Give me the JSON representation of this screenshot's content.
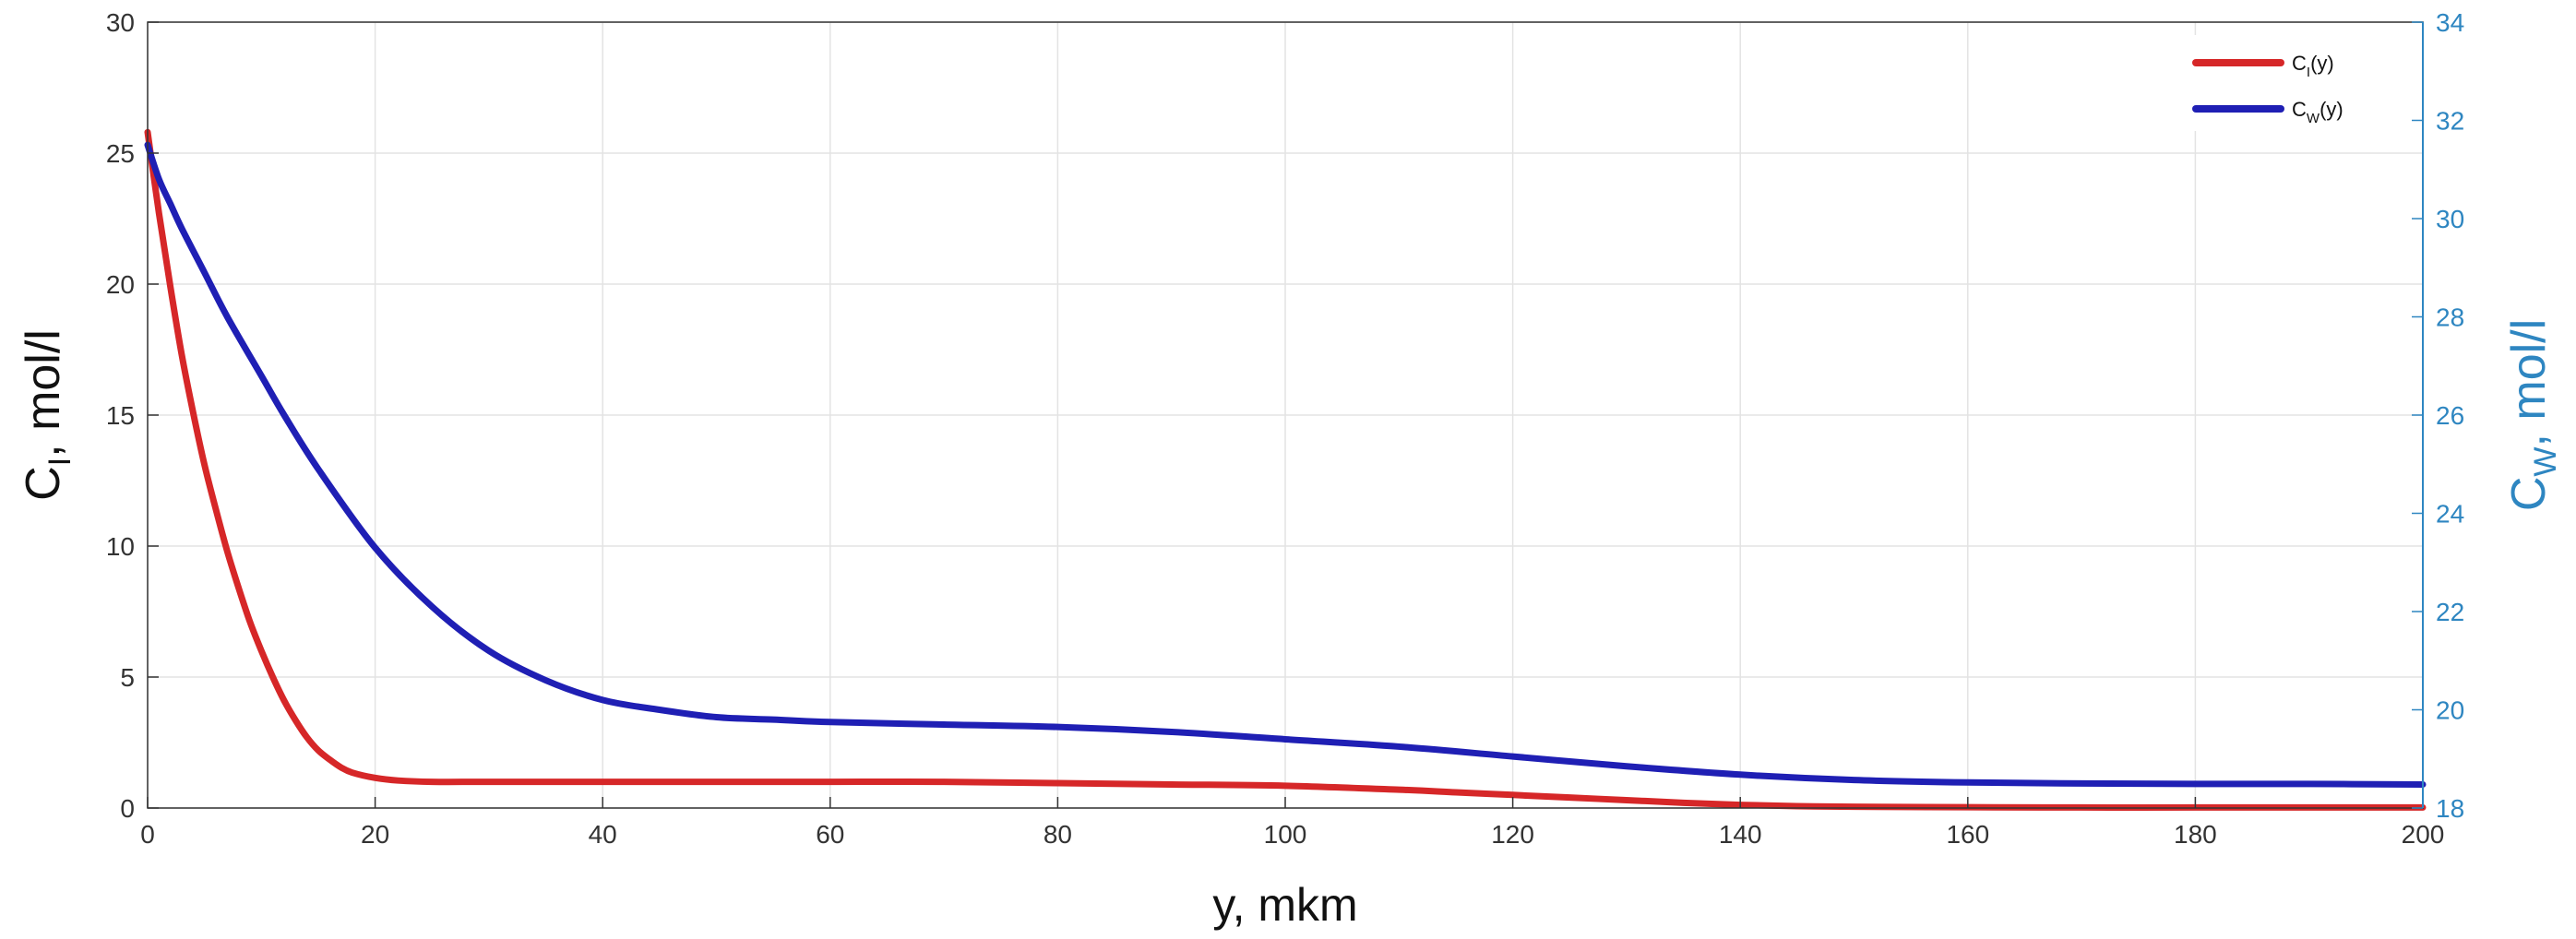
{
  "chart_data": {
    "type": "line",
    "x_axis": {
      "label_main": "y, mkm",
      "range": [
        0,
        200
      ],
      "ticks": [
        0,
        20,
        40,
        60,
        80,
        100,
        120,
        140,
        160,
        180,
        200
      ],
      "tick_labels": [
        "0",
        "20",
        "40",
        "60",
        "80",
        "100",
        "120",
        "140",
        "160",
        "180",
        "200"
      ]
    },
    "y_left": {
      "label_main": "C",
      "label_sub": "I",
      "label_rest": ", mol/l",
      "range": [
        0,
        30
      ],
      "ticks": [
        0,
        5,
        10,
        15,
        20,
        25,
        30
      ],
      "tick_labels": [
        "0",
        "5",
        "10",
        "15",
        "20",
        "25",
        "30"
      ],
      "color": "#111111"
    },
    "y_right": {
      "label_main": "C",
      "label_sub": "W",
      "label_rest": ", mol/l",
      "range": [
        18,
        34
      ],
      "ticks": [
        18,
        20,
        22,
        24,
        26,
        28,
        30,
        32,
        34
      ],
      "tick_labels": [
        "18",
        "20",
        "22",
        "24",
        "26",
        "28",
        "30",
        "32",
        "34"
      ],
      "color": "#2e86c1"
    },
    "grid": true,
    "legend_position": "top-right",
    "series": [
      {
        "name_main": "C",
        "name_sub": "I",
        "name_rest": "(y)",
        "axis": "left",
        "color": "#d62728",
        "x": [
          0,
          1,
          2,
          3,
          4,
          5,
          6,
          7,
          8,
          9,
          10,
          11,
          12,
          13,
          14,
          15,
          16,
          17,
          18,
          20,
          22,
          25,
          30,
          40,
          50,
          60,
          70,
          80,
          90,
          100,
          110,
          115,
          120,
          125,
          130,
          135,
          140,
          145,
          150,
          160,
          170,
          180,
          190,
          200
        ],
        "y": [
          25.8,
          22.7,
          19.9,
          17.3,
          15.1,
          13.1,
          11.4,
          9.8,
          8.4,
          7.1,
          6.0,
          5.0,
          4.1,
          3.35,
          2.7,
          2.2,
          1.85,
          1.55,
          1.35,
          1.15,
          1.05,
          1.0,
          1.0,
          1.0,
          1.0,
          1.0,
          1.0,
          0.95,
          0.9,
          0.85,
          0.7,
          0.6,
          0.5,
          0.4,
          0.3,
          0.2,
          0.12,
          0.07,
          0.05,
          0.03,
          0.02,
          0.02,
          0.02,
          0.02
        ]
      },
      {
        "name_main": "C",
        "name_sub": "W",
        "name_rest": "(y)",
        "axis": "right",
        "color": "#1f1fb4",
        "x": [
          0,
          1,
          2,
          3,
          5,
          7,
          10,
          12,
          15,
          20,
          25,
          30,
          35,
          40,
          45,
          50,
          55,
          60,
          70,
          80,
          90,
          100,
          110,
          120,
          130,
          140,
          150,
          160,
          170,
          180,
          190,
          200
        ],
        "y": [
          31.5,
          30.8,
          30.3,
          29.8,
          28.9,
          28.0,
          26.8,
          26.0,
          24.9,
          23.3,
          22.1,
          21.2,
          20.6,
          20.2,
          20.0,
          19.85,
          19.8,
          19.75,
          19.7,
          19.65,
          19.55,
          19.4,
          19.25,
          19.05,
          18.85,
          18.68,
          18.57,
          18.52,
          18.5,
          18.49,
          18.49,
          18.48
        ]
      }
    ]
  }
}
